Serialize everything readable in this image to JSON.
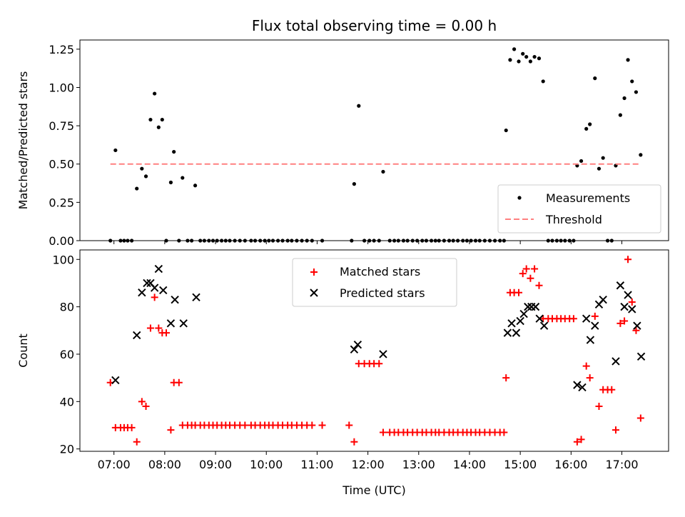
{
  "chart_data": [
    {
      "type": "scatter",
      "title": "Flux total observing time = 0.00 h",
      "xlabel": "",
      "ylabel": "Matched/Predicted stars",
      "xlim": [
        6.33,
        17.92
      ],
      "ylim": [
        0.0,
        1.31
      ],
      "yticks": [
        0.0,
        0.25,
        0.5,
        0.75,
        1.0,
        1.25
      ],
      "yticklabels": [
        "0.00",
        "0.25",
        "0.50",
        "0.75",
        "1.00",
        "1.25"
      ],
      "xticks": [
        7,
        8,
        9,
        10,
        11,
        12,
        13,
        14,
        15,
        16,
        17
      ],
      "legend_position": "lower-right",
      "series": [
        {
          "name": "Measurements",
          "marker": "dot",
          "color": "#000000",
          "x": [
            6.93,
            7.03,
            7.13,
            7.2,
            7.27,
            7.35,
            7.45,
            7.55,
            7.63,
            7.72,
            7.8,
            7.88,
            7.95,
            8.03,
            8.12,
            8.18,
            8.28,
            8.35,
            8.45,
            8.53,
            8.6,
            8.7,
            8.78,
            8.87,
            8.95,
            9.03,
            9.12,
            9.2,
            9.28,
            9.38,
            9.48,
            9.58,
            9.7,
            9.78,
            9.88,
            9.97,
            10.05,
            10.13,
            10.23,
            10.32,
            10.42,
            10.5,
            10.6,
            10.7,
            10.8,
            10.9,
            11.1,
            11.68,
            11.73,
            11.82,
            11.93,
            12.03,
            12.12,
            12.22,
            12.3,
            12.43,
            12.52,
            12.6,
            12.7,
            12.78,
            12.88,
            12.97,
            13.07,
            13.15,
            13.25,
            13.33,
            13.4,
            13.5,
            13.6,
            13.68,
            13.77,
            13.87,
            13.95,
            14.03,
            14.12,
            14.2,
            14.3,
            14.4,
            14.5,
            14.6,
            14.68,
            14.72,
            14.8,
            14.88,
            14.97,
            15.05,
            15.12,
            15.2,
            15.28,
            15.37,
            15.45,
            15.55,
            15.63,
            15.72,
            15.8,
            15.88,
            15.97,
            16.05,
            16.12,
            16.2,
            16.3,
            16.37,
            16.47,
            16.55,
            16.63,
            16.72,
            16.8,
            16.88,
            16.97,
            17.05,
            17.12,
            17.2,
            17.28,
            17.37
          ],
          "y": [
            0.0,
            0.59,
            0.0,
            0.0,
            0.0,
            0.0,
            0.34,
            0.47,
            0.42,
            0.79,
            0.96,
            0.74,
            0.79,
            0.0,
            0.38,
            0.58,
            0.0,
            0.41,
            0.0,
            0.0,
            0.36,
            0.0,
            0.0,
            0.0,
            0.0,
            0.0,
            0.0,
            0.0,
            0.0,
            0.0,
            0.0,
            0.0,
            0.0,
            0.0,
            0.0,
            0.0,
            0.0,
            0.0,
            0.0,
            0.0,
            0.0,
            0.0,
            0.0,
            0.0,
            0.0,
            0.0,
            0.0,
            0.0,
            0.37,
            0.88,
            0.0,
            0.0,
            0.0,
            0.0,
            0.45,
            0.0,
            0.0,
            0.0,
            0.0,
            0.0,
            0.0,
            0.0,
            0.0,
            0.0,
            0.0,
            0.0,
            0.0,
            0.0,
            0.0,
            0.0,
            0.0,
            0.0,
            0.0,
            0.0,
            0.0,
            0.0,
            0.0,
            0.0,
            0.0,
            0.0,
            0.0,
            0.72,
            1.18,
            1.25,
            1.17,
            1.22,
            1.2,
            1.17,
            1.2,
            1.19,
            1.04,
            0.0,
            0.0,
            0.0,
            0.0,
            0.0,
            0.0,
            0.0,
            0.49,
            0.52,
            0.73,
            0.76,
            1.06,
            0.47,
            0.54,
            0.0,
            0.0,
            0.49,
            0.82,
            0.93,
            1.18,
            1.04,
            0.97,
            0.56
          ]
        },
        {
          "name": "Threshold",
          "marker": "dashed-line",
          "color": "#ff8080",
          "x": [
            6.93,
            17.37
          ],
          "y": [
            0.5,
            0.5
          ]
        }
      ]
    },
    {
      "type": "scatter",
      "title": "",
      "xlabel": "Time (UTC)",
      "ylabel": "Count",
      "xlim": [
        6.33,
        17.92
      ],
      "ylim": [
        19,
        104
      ],
      "yticks": [
        20,
        40,
        60,
        80,
        100
      ],
      "xticks": [
        7,
        8,
        9,
        10,
        11,
        12,
        13,
        14,
        15,
        16,
        17
      ],
      "xticklabels": [
        "07:00",
        "08:00",
        "09:00",
        "10:00",
        "11:00",
        "12:00",
        "13:00",
        "14:00",
        "15:00",
        "16:00",
        "17:00"
      ],
      "legend_position": "upper-center",
      "series": [
        {
          "name": "Matched stars",
          "marker": "plus",
          "color": "#ff0000",
          "x": [
            6.93,
            7.03,
            7.13,
            7.2,
            7.27,
            7.35,
            7.45,
            7.55,
            7.63,
            7.72,
            7.8,
            7.88,
            7.95,
            8.03,
            8.12,
            8.18,
            8.28,
            8.35,
            8.45,
            8.53,
            8.6,
            8.7,
            8.78,
            8.87,
            8.95,
            9.03,
            9.12,
            9.2,
            9.28,
            9.38,
            9.48,
            9.58,
            9.7,
            9.78,
            9.88,
            9.97,
            10.05,
            10.13,
            10.23,
            10.32,
            10.42,
            10.5,
            10.6,
            10.7,
            10.8,
            10.9,
            11.1,
            11.63,
            11.73,
            11.82,
            11.93,
            12.03,
            12.12,
            12.22,
            12.3,
            12.43,
            12.52,
            12.6,
            12.7,
            12.78,
            12.88,
            12.97,
            13.07,
            13.15,
            13.25,
            13.33,
            13.4,
            13.5,
            13.6,
            13.68,
            13.77,
            13.87,
            13.95,
            14.03,
            14.12,
            14.2,
            14.3,
            14.4,
            14.5,
            14.6,
            14.68,
            14.72,
            14.8,
            14.88,
            14.97,
            15.05,
            15.12,
            15.2,
            15.28,
            15.37,
            15.45,
            15.55,
            15.63,
            15.72,
            15.8,
            15.88,
            15.97,
            16.05,
            16.12,
            16.2,
            16.3,
            16.37,
            16.47,
            16.55,
            16.63,
            16.72,
            16.8,
            16.88,
            16.97,
            17.05,
            17.12,
            17.2,
            17.28,
            17.37
          ],
          "y": [
            48,
            29,
            29,
            29,
            29,
            29,
            23,
            40,
            38,
            71,
            84,
            71,
            69,
            69,
            28,
            48,
            48,
            30,
            30,
            30,
            30,
            30,
            30,
            30,
            30,
            30,
            30,
            30,
            30,
            30,
            30,
            30,
            30,
            30,
            30,
            30,
            30,
            30,
            30,
            30,
            30,
            30,
            30,
            30,
            30,
            30,
            30,
            30,
            23,
            56,
            56,
            56,
            56,
            56,
            27,
            27,
            27,
            27,
            27,
            27,
            27,
            27,
            27,
            27,
            27,
            27,
            27,
            27,
            27,
            27,
            27,
            27,
            27,
            27,
            27,
            27,
            27,
            27,
            27,
            27,
            27,
            50,
            86,
            86,
            86,
            94,
            96,
            92,
            96,
            89,
            75,
            75,
            75,
            75,
            75,
            75,
            75,
            75,
            23,
            24,
            55,
            50,
            76,
            38,
            45,
            45,
            45,
            28,
            73,
            74,
            100,
            82,
            70,
            33
          ]
        },
        {
          "name": "Predicted stars",
          "marker": "x",
          "color": "#000000",
          "x": [
            7.03,
            7.45,
            7.55,
            7.65,
            7.72,
            7.8,
            7.88,
            7.97,
            8.12,
            8.2,
            8.37,
            8.62,
            11.73,
            11.8,
            12.3,
            14.75,
            14.83,
            14.92,
            15.0,
            15.07,
            15.15,
            15.22,
            15.3,
            15.38,
            15.47,
            16.12,
            16.22,
            16.3,
            16.38,
            16.47,
            16.55,
            16.63,
            16.88,
            16.97,
            17.05,
            17.12,
            17.2,
            17.3,
            17.38
          ],
          "y": [
            49,
            68,
            86,
            90,
            90,
            88,
            96,
            87,
            73,
            83,
            73,
            84,
            62,
            64,
            60,
            69,
            73,
            69,
            74,
            77,
            80,
            80,
            80,
            75,
            72,
            47,
            46,
            75,
            66,
            72,
            81,
            83,
            57,
            89,
            80,
            85,
            79,
            72,
            59
          ]
        }
      ]
    }
  ]
}
